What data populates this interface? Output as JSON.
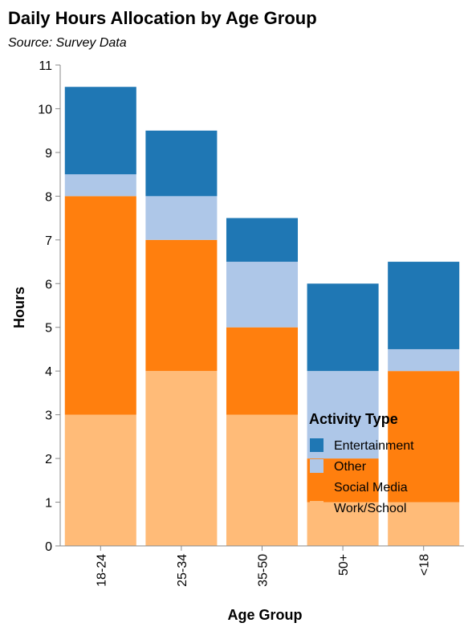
{
  "chart_data": {
    "type": "bar",
    "stacked": true,
    "title": "Daily Hours Allocation by Age Group",
    "subtitle": "Source: Survey Data",
    "xlabel": "Age Group",
    "ylabel": "Hours",
    "ylim": [
      0,
      11
    ],
    "yticks": [
      0,
      1,
      2,
      3,
      4,
      5,
      6,
      7,
      8,
      9,
      10,
      11
    ],
    "grid": false,
    "legend_title": "Activity Type",
    "legend_position": "bottom-right",
    "categories": [
      "18-24",
      "25-34",
      "35-50",
      "50+",
      "<18"
    ],
    "series": [
      {
        "name": "Work/School",
        "color": "#ffbb78",
        "values": [
          3,
          4,
          3,
          1,
          1
        ]
      },
      {
        "name": "Social Media",
        "color": "#ff7f0e",
        "values": [
          5,
          3,
          2,
          1,
          3
        ]
      },
      {
        "name": "Other",
        "color": "#aec7e8",
        "values": [
          0.5,
          1,
          1.5,
          2,
          0.5
        ]
      },
      {
        "name": "Entertainment",
        "color": "#1f77b4",
        "values": [
          2,
          1.5,
          1,
          2,
          2
        ]
      }
    ],
    "legend_order": [
      "Entertainment",
      "Other",
      "Social Media",
      "Work/School"
    ]
  }
}
